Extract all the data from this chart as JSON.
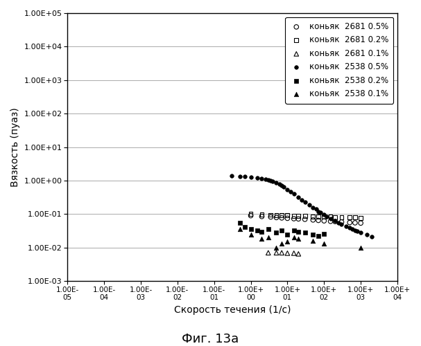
{
  "xlabel": "Скорость течения (1/с)",
  "ylabel": "Вязкость (пуаз)",
  "caption": "Фиг. 13а",
  "xlim_log": [
    -5,
    4
  ],
  "ylim_log": [
    -3,
    5
  ],
  "legend_entries": [
    "коньяк  2681 0.5%",
    "коньяк  2681 0.2%",
    "коньяк  2681 0.1%",
    "коньяк  2538 0.5%",
    "коньяк  2538 0.2%",
    "коньяк  2538 0.1%"
  ],
  "konnyak_2681_05_x": [
    1.0,
    2.0,
    3.5,
    5.0,
    7.0,
    10.0,
    15.0,
    20.0,
    30.0,
    50.0,
    70.0,
    100.0,
    150.0,
    200.0,
    300.0,
    500.0,
    700.0,
    1000.0
  ],
  "konnyak_2681_05_y": [
    0.09,
    0.085,
    0.082,
    0.079,
    0.077,
    0.075,
    0.073,
    0.072,
    0.07,
    0.067,
    0.065,
    0.063,
    0.061,
    0.06,
    0.058,
    0.056,
    0.055,
    0.054
  ],
  "konnyak_2681_02_x": [
    1.0,
    2.0,
    3.5,
    5.0,
    7.0,
    10.0,
    15.0,
    20.0,
    30.0,
    50.0,
    70.0,
    100.0,
    150.0,
    200.0,
    300.0,
    500.0,
    700.0,
    1000.0
  ],
  "konnyak_2681_02_y": [
    0.1,
    0.097,
    0.095,
    0.093,
    0.092,
    0.091,
    0.09,
    0.089,
    0.088,
    0.086,
    0.085,
    0.084,
    0.083,
    0.082,
    0.081,
    0.08,
    0.079,
    0.078
  ],
  "konnyak_2681_01_x": [
    3.0,
    5.0,
    7.0,
    10.0,
    15.0,
    20.0
  ],
  "konnyak_2681_01_y": [
    0.007,
    0.007,
    0.007,
    0.0068,
    0.0068,
    0.0065
  ],
  "konnyak_2538_05_x": [
    0.3,
    0.5,
    0.7,
    1.0,
    1.5,
    2.0,
    2.5,
    3.0,
    3.5,
    4.0,
    5.0,
    6.0,
    7.0,
    8.0,
    10.0,
    12.0,
    15.0,
    20.0,
    25.0,
    30.0,
    40.0,
    50.0,
    60.0,
    70.0,
    80.0,
    100.0,
    120.0,
    150.0,
    200.0,
    250.0,
    300.0,
    400.0,
    500.0,
    600.0,
    700.0,
    800.0,
    1000.0,
    1500.0,
    2000.0
  ],
  "konnyak_2538_05_y": [
    1.4,
    1.35,
    1.3,
    1.25,
    1.2,
    1.15,
    1.1,
    1.05,
    1.0,
    0.95,
    0.88,
    0.8,
    0.72,
    0.65,
    0.55,
    0.47,
    0.4,
    0.32,
    0.27,
    0.23,
    0.19,
    0.16,
    0.14,
    0.12,
    0.11,
    0.095,
    0.085,
    0.073,
    0.063,
    0.056,
    0.05,
    0.044,
    0.039,
    0.036,
    0.033,
    0.031,
    0.028,
    0.024,
    0.021
  ],
  "konnyak_2538_02_x": [
    0.5,
    0.7,
    1.0,
    1.5,
    2.0,
    3.0,
    5.0,
    7.0,
    10.0,
    15.0,
    20.0,
    30.0,
    50.0,
    70.0,
    100.0
  ],
  "konnyak_2538_02_y": [
    0.055,
    0.042,
    0.035,
    0.032,
    0.03,
    0.035,
    0.028,
    0.033,
    0.025,
    0.032,
    0.03,
    0.028,
    0.025,
    0.022,
    0.026
  ],
  "konnyak_2538_01_x": [
    0.5,
    1.0,
    2.0,
    3.0,
    5.0,
    7.0,
    10.0,
    15.0,
    20.0,
    50.0,
    100.0,
    1000.0
  ],
  "konnyak_2538_01_y": [
    0.035,
    0.025,
    0.018,
    0.02,
    0.01,
    0.013,
    0.015,
    0.02,
    0.018,
    0.016,
    0.013,
    0.01
  ]
}
